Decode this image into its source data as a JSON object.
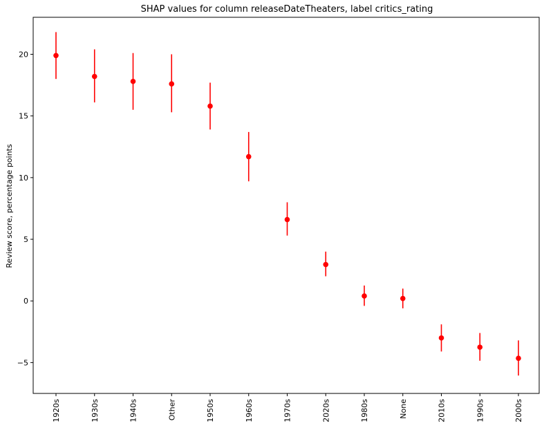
{
  "chart_data": {
    "type": "scatter",
    "title": "SHAP values for column releaseDateTheaters, label critics_rating",
    "xlabel": "",
    "ylabel": "Review score, percentage points",
    "categories": [
      "1920s",
      "1930s",
      "1940s",
      "Other",
      "1950s",
      "1960s",
      "1970s",
      "2020s",
      "1980s",
      "None",
      "2010s",
      "1990s",
      "2000s"
    ],
    "series": [
      {
        "values": [
          19.9,
          18.2,
          17.8,
          17.6,
          15.8,
          11.7,
          6.6,
          2.95,
          0.4,
          0.2,
          -3.0,
          -3.75,
          -4.65
        ],
        "error_low": [
          18.0,
          16.1,
          15.5,
          15.3,
          13.9,
          9.7,
          5.3,
          2.0,
          -0.4,
          -0.6,
          -4.1,
          -4.85,
          -6.05
        ],
        "error_high": [
          21.8,
          20.4,
          20.1,
          20.0,
          17.7,
          13.7,
          8.0,
          4.0,
          1.25,
          1.0,
          -1.9,
          -2.6,
          -3.2
        ],
        "color": "#ff0000"
      }
    ],
    "ylim": [
      -7.5,
      23.0
    ],
    "yticks": [
      -5,
      0,
      5,
      10,
      15,
      20
    ],
    "grid": false,
    "legend": "none"
  }
}
